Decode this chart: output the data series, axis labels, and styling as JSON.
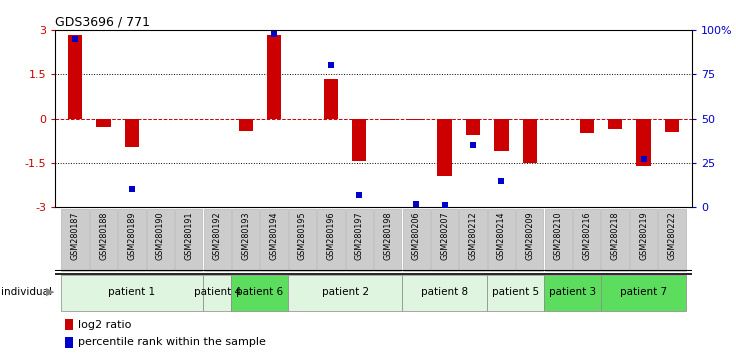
{
  "title": "GDS3696 / 771",
  "samples": [
    "GSM280187",
    "GSM280188",
    "GSM280189",
    "GSM280190",
    "GSM280191",
    "GSM280192",
    "GSM280193",
    "GSM280194",
    "GSM280195",
    "GSM280196",
    "GSM280197",
    "GSM280198",
    "GSM280206",
    "GSM280207",
    "GSM280212",
    "GSM280214",
    "GSM280209",
    "GSM280210",
    "GSM280216",
    "GSM280218",
    "GSM280219",
    "GSM280222"
  ],
  "log2_ratio": [
    2.85,
    -0.28,
    -0.95,
    0.0,
    0.0,
    0.0,
    -0.42,
    2.82,
    0.0,
    1.35,
    -1.45,
    -0.05,
    -0.05,
    -1.95,
    -0.55,
    -1.1,
    -1.5,
    0.0,
    -0.48,
    -0.35,
    -1.6,
    -0.45
  ],
  "percentile_rank": [
    95,
    null,
    10,
    null,
    null,
    null,
    null,
    98,
    null,
    80,
    7,
    null,
    2,
    1,
    35,
    15,
    null,
    null,
    null,
    null,
    27,
    null
  ],
  "patients": [
    {
      "label": "patient 1",
      "start": 0,
      "end": 4,
      "color": "#e0f5e0"
    },
    {
      "label": "patient 4",
      "start": 5,
      "end": 5,
      "color": "#e0f5e0"
    },
    {
      "label": "patient 6",
      "start": 6,
      "end": 7,
      "color": "#5ddd5d"
    },
    {
      "label": "patient 2",
      "start": 8,
      "end": 11,
      "color": "#e0f5e0"
    },
    {
      "label": "patient 8",
      "start": 12,
      "end": 14,
      "color": "#e0f5e0"
    },
    {
      "label": "patient 5",
      "start": 15,
      "end": 16,
      "color": "#e0f5e0"
    },
    {
      "label": "patient 3",
      "start": 17,
      "end": 18,
      "color": "#5ddd5d"
    },
    {
      "label": "patient 7",
      "start": 19,
      "end": 21,
      "color": "#5ddd5d"
    }
  ],
  "ylim": [
    -3.0,
    3.0
  ],
  "right_ylim": [
    0,
    100
  ],
  "right_yticks": [
    0,
    25,
    50,
    75,
    100
  ],
  "right_yticklabels": [
    "0",
    "25",
    "50",
    "75",
    "100%"
  ],
  "left_yticks": [
    -3,
    -1.5,
    0,
    1.5,
    3
  ],
  "bar_color": "#cc0000",
  "dot_color": "#0000cc",
  "hline_color": "#cc0000",
  "bg_color": "#ffffff",
  "sample_box_color": "#cccccc",
  "bar_width": 0.5,
  "dot_size": 18
}
